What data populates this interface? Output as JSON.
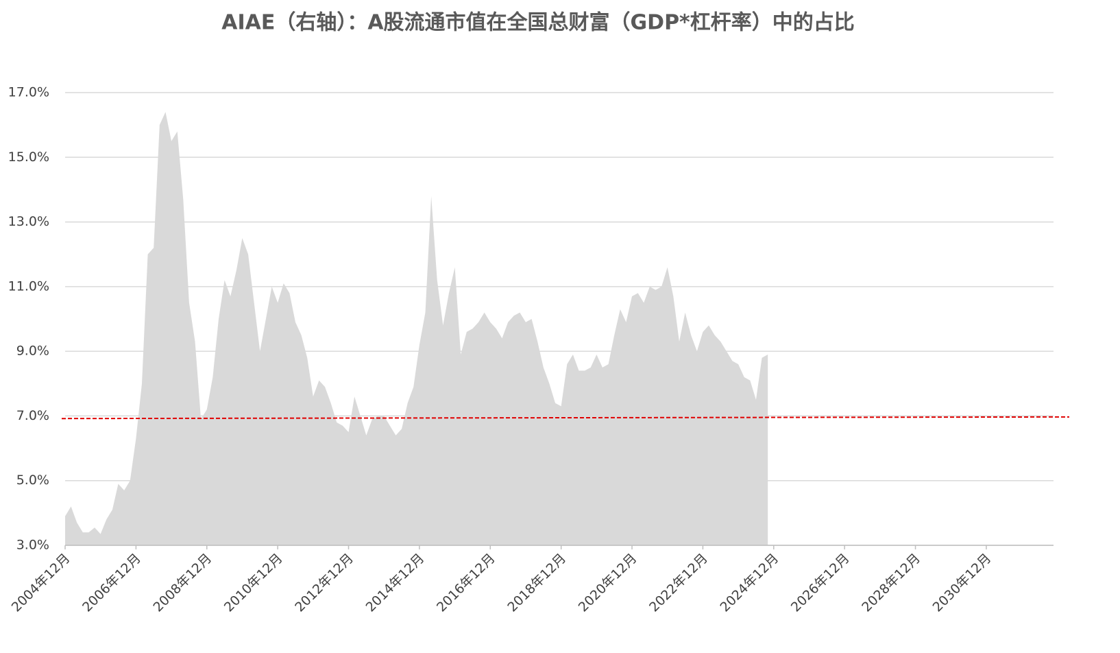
{
  "chart_data": {
    "type": "area",
    "title": "AIAE（右轴）：A股流通市值在全国总财富（GDP*杠杆率）中的占比",
    "categories": [
      "2004年12月",
      null,
      null,
      null,
      null,
      null,
      null,
      null,
      null,
      null,
      null,
      null,
      "2006年12月",
      null,
      null,
      null,
      null,
      null,
      null,
      null,
      null,
      null,
      null,
      null,
      "2008年12月",
      null,
      null,
      null,
      null,
      null,
      null,
      null,
      null,
      null,
      null,
      null,
      "2010年12月",
      null,
      null,
      null,
      null,
      null,
      null,
      null,
      null,
      null,
      null,
      null,
      "2012年12月",
      null,
      null,
      null,
      null,
      null,
      null,
      null,
      null,
      null,
      null,
      null,
      "2014年12月",
      null,
      null,
      null,
      null,
      null,
      null,
      null,
      null,
      null,
      null,
      null,
      "2016年12月",
      null,
      null,
      null,
      null,
      null,
      null,
      null,
      null,
      null,
      null,
      null,
      "2018年12月",
      null,
      null,
      null,
      null,
      null,
      null,
      null,
      null,
      null,
      null,
      null,
      "2020年12月",
      null,
      null,
      null,
      null,
      null,
      null,
      null,
      null,
      null,
      null,
      null,
      "2022年12月",
      null,
      null,
      null,
      null,
      null,
      null,
      null,
      null,
      null,
      null,
      null,
      "2024年12月",
      null,
      null,
      null,
      null,
      null,
      null,
      null,
      null,
      null,
      null,
      null,
      "2026年12月",
      null,
      null,
      null,
      null,
      null,
      null,
      null,
      null,
      null,
      null,
      null,
      "2028年12月",
      null,
      null,
      null,
      null,
      null,
      null,
      null,
      null,
      null,
      null,
      null,
      "2030年12月",
      null,
      null,
      null,
      null,
      null,
      null,
      null,
      null,
      null,
      null,
      null,
      null
    ],
    "values": [
      3.9,
      4.2,
      3.7,
      3.4,
      3.4,
      3.55,
      3.35,
      3.8,
      4.1,
      4.9,
      4.7,
      5.0,
      6.3,
      8.0,
      12.0,
      12.2,
      16.0,
      16.4,
      15.5,
      15.8,
      13.7,
      10.5,
      9.3,
      6.9,
      7.2,
      8.2,
      10.0,
      11.2,
      10.7,
      11.5,
      12.5,
      12.0,
      10.5,
      9.0,
      10.0,
      11.0,
      10.5,
      11.1,
      10.8,
      9.9,
      9.5,
      8.8,
      7.6,
      8.1,
      7.9,
      7.4,
      6.8,
      6.7,
      6.5,
      7.6,
      7.0,
      6.4,
      6.9,
      7.0,
      7.0,
      6.7,
      6.4,
      6.6,
      7.4,
      7.9,
      9.2,
      10.2,
      13.8,
      11.2,
      9.8,
      10.8,
      11.6,
      8.9,
      9.6,
      9.7,
      9.9,
      10.2,
      9.9,
      9.7,
      9.4,
      9.9,
      10.1,
      10.2,
      9.9,
      10.0,
      9.3,
      8.5,
      8.0,
      7.4,
      7.3,
      8.6,
      8.9,
      8.4,
      8.4,
      8.5,
      8.9,
      8.5,
      8.6,
      9.5,
      10.3,
      9.9,
      10.7,
      10.8,
      10.5,
      11.0,
      10.9,
      11.0,
      11.6,
      10.7,
      9.3,
      10.2,
      9.5,
      9.0,
      9.6,
      9.8,
      9.5,
      9.3,
      9.0,
      8.7,
      8.6,
      8.2,
      8.1,
      7.5,
      8.8,
      8.9,
      null,
      null,
      null,
      null,
      null,
      null,
      null,
      null,
      null,
      null,
      null,
      null,
      null,
      null,
      null,
      null,
      null,
      null,
      null,
      null,
      null,
      null,
      null,
      null,
      null,
      null,
      null,
      null,
      null,
      null,
      null,
      null,
      null,
      null,
      null,
      null,
      null,
      null,
      null,
      null,
      null,
      null,
      null,
      null,
      null,
      null,
      null,
      null,
      null
    ],
    "color": "#d9d9d9",
    "reference_line": {
      "start": 6.92,
      "end": 6.97,
      "color": "#e00000"
    },
    "ylim": [
      3,
      17
    ],
    "yticks": [
      {
        "value": 3,
        "label": "3.0%"
      },
      {
        "value": 5,
        "label": "5.0%"
      },
      {
        "value": 7,
        "label": "7.0%"
      },
      {
        "value": 9,
        "label": "9.0%"
      },
      {
        "value": 11,
        "label": "11.0%"
      },
      {
        "value": 13,
        "label": "13.0%"
      },
      {
        "value": 15,
        "label": "15.0%"
      },
      {
        "value": 17,
        "label": "17.0%"
      }
    ],
    "grid": true
  }
}
